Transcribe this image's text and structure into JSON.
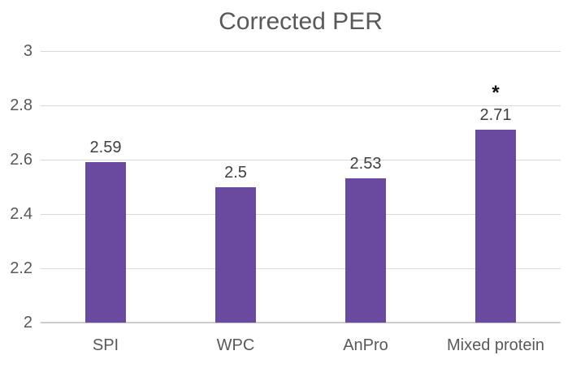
{
  "chart_data": {
    "type": "bar",
    "title": "Corrected PER",
    "categories": [
      "SPI",
      "WPC",
      "AnPro",
      "Mixed protein"
    ],
    "values": [
      2.59,
      2.5,
      2.53,
      2.71
    ],
    "value_labels": [
      "2.59",
      "2.5",
      "2.53",
      "2.71"
    ],
    "annotations": [
      "",
      "",
      "",
      "*"
    ],
    "ylim": [
      2,
      3
    ],
    "yticks": [
      3,
      2.8,
      2.6,
      2.4,
      2.2,
      2
    ],
    "ytick_labels": [
      "3",
      "2.8",
      "2.6",
      "2.4",
      "2.2",
      "2"
    ],
    "xlabel": "",
    "ylabel": "",
    "grid": "horizontal",
    "legend": "none",
    "colors": {
      "bar": "#6a4a9e",
      "title": "#595959",
      "axis_labels": "#595959",
      "data_labels": "#404040",
      "gridlines": "#d9d9d9",
      "significance_marker": "#111111"
    }
  }
}
